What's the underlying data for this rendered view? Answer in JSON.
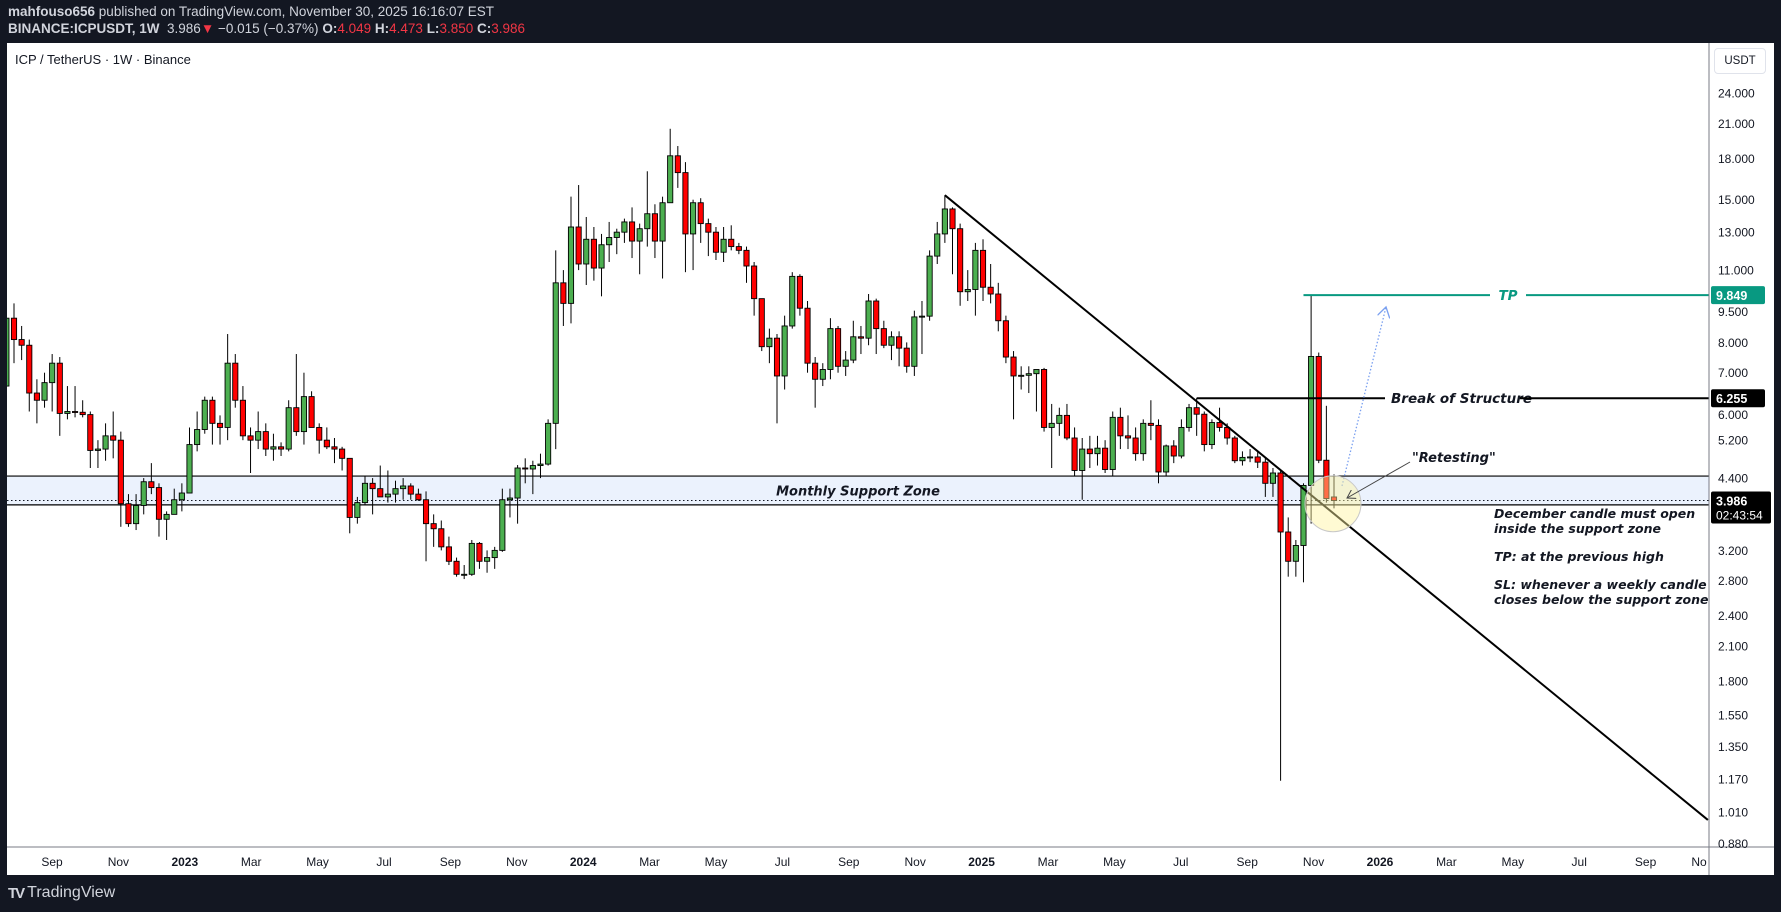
{
  "header": {
    "author": "mahfouso656",
    "published": "published on TradingView.com, November 30, 2025 16:16:07 EST",
    "symbol": "BINANCE:ICPUSDT, 1W",
    "last": "3.986",
    "direction_icon": "triangle-down-icon",
    "change": "−0.015 (−0.37%)",
    "o_label": "O:",
    "o": "4.049",
    "h_label": "H:",
    "h": "4.473",
    "l_label": "L:",
    "l": "3.850",
    "c_label": "C:",
    "c": "3.986"
  },
  "chart_title": "ICP / TetherUS · 1W · Binance",
  "currency_button": "USDT",
  "footer_logo": "TradingView",
  "colors": {
    "up": "#4caf50",
    "down": "#ff0000",
    "tp": "#089981",
    "zone": "#ebf2fd",
    "background": "#131722"
  },
  "chart_data": {
    "type": "candlestick",
    "interval": "1W",
    "yscale": "log",
    "ylim": [
      0.86,
      26
    ],
    "grid": false,
    "y_ticks": [
      "24.000",
      "21.000",
      "18.000",
      "15.000",
      "13.000",
      "11.000",
      "9.500",
      "8.000",
      "7.000",
      "6.000",
      "5.200",
      "4.400",
      "3.200",
      "2.800",
      "2.400",
      "2.100",
      "1.800",
      "1.550",
      "1.350",
      "1.170",
      "1.010",
      "0.880"
    ],
    "x_ticks": [
      "Sep",
      "Nov",
      "2023",
      "Mar",
      "May",
      "Jul",
      "Sep",
      "Nov",
      "2024",
      "Mar",
      "May",
      "Jul",
      "Sep",
      "Nov",
      "2025",
      "Mar",
      "May",
      "Jul",
      "Sep",
      "Nov",
      "2026",
      "Mar",
      "May",
      "Jul",
      "Sep",
      "No"
    ],
    "ohlc_columns": [
      "open",
      "high",
      "low",
      "close"
    ],
    "candles": [
      [
        6.6,
        9.6,
        6.0,
        8.9
      ],
      [
        8.9,
        9.5,
        7.3,
        8.1
      ],
      [
        8.1,
        8.6,
        7.4,
        7.9
      ],
      [
        7.9,
        8.1,
        5.9,
        6.4
      ],
      [
        6.4,
        6.8,
        5.6,
        6.2
      ],
      [
        6.2,
        7.0,
        6.0,
        6.7
      ],
      [
        6.7,
        7.6,
        5.9,
        7.3
      ],
      [
        7.3,
        7.5,
        5.3,
        5.85
      ],
      [
        5.85,
        6.6,
        5.7,
        5.9
      ],
      [
        5.9,
        6.6,
        5.75,
        5.88
      ],
      [
        5.88,
        6.2,
        5.75,
        5.82
      ],
      [
        5.82,
        5.9,
        4.6,
        4.97
      ],
      [
        4.97,
        5.2,
        4.6,
        5.0
      ],
      [
        5.0,
        5.6,
        4.75,
        5.3
      ],
      [
        5.3,
        5.9,
        4.8,
        5.2
      ],
      [
        5.2,
        5.4,
        3.55,
        3.93
      ],
      [
        3.93,
        4.1,
        3.55,
        3.6
      ],
      [
        3.6,
        4.1,
        3.5,
        3.9
      ],
      [
        3.9,
        4.4,
        3.75,
        4.33
      ],
      [
        4.33,
        4.7,
        4.1,
        4.22
      ],
      [
        4.22,
        4.3,
        3.4,
        3.67
      ],
      [
        3.67,
        3.8,
        3.35,
        3.75
      ],
      [
        3.75,
        4.2,
        3.75,
        4.0
      ],
      [
        4.0,
        4.3,
        3.8,
        4.12
      ],
      [
        4.12,
        5.5,
        4.12,
        5.1
      ],
      [
        5.1,
        5.9,
        4.95,
        5.45
      ],
      [
        5.45,
        6.3,
        5.35,
        6.2
      ],
      [
        6.2,
        6.3,
        5.1,
        5.6
      ],
      [
        5.6,
        5.8,
        5.1,
        5.5
      ],
      [
        5.5,
        8.3,
        5.2,
        7.3
      ],
      [
        7.3,
        7.6,
        6.0,
        6.2
      ],
      [
        6.2,
        6.6,
        5.2,
        5.3
      ],
      [
        5.3,
        5.5,
        4.5,
        5.2
      ],
      [
        5.2,
        5.9,
        5.0,
        5.4
      ],
      [
        5.4,
        5.6,
        4.85,
        5.0
      ],
      [
        5.0,
        5.35,
        4.75,
        5.05
      ],
      [
        5.05,
        5.15,
        4.85,
        5.0
      ],
      [
        5.0,
        6.2,
        4.95,
        6.0
      ],
      [
        6.0,
        7.6,
        5.3,
        5.4
      ],
      [
        5.4,
        7.0,
        5.1,
        6.3
      ],
      [
        6.3,
        6.45,
        5.5,
        5.5
      ],
      [
        5.5,
        5.6,
        4.9,
        5.2
      ],
      [
        5.2,
        5.5,
        5.0,
        5.05
      ],
      [
        5.05,
        5.25,
        4.7,
        5.0
      ],
      [
        5.0,
        5.05,
        4.55,
        4.8
      ],
      [
        4.8,
        4.8,
        3.45,
        3.7
      ],
      [
        3.7,
        4.05,
        3.6,
        3.95
      ],
      [
        3.95,
        4.45,
        3.9,
        4.3
      ],
      [
        4.3,
        4.4,
        3.75,
        4.2
      ],
      [
        4.2,
        4.65,
        4.05,
        4.05
      ],
      [
        4.05,
        4.55,
        3.95,
        4.1
      ],
      [
        4.1,
        4.35,
        3.95,
        4.2
      ],
      [
        4.2,
        4.4,
        4.0,
        4.25
      ],
      [
        4.25,
        4.3,
        4.0,
        4.1
      ],
      [
        4.1,
        4.2,
        3.98,
        4.0
      ],
      [
        4.0,
        4.15,
        3.05,
        3.6
      ],
      [
        3.6,
        3.75,
        3.25,
        3.52
      ],
      [
        3.52,
        3.65,
        3.2,
        3.25
      ],
      [
        3.25,
        3.4,
        3.0,
        3.05
      ],
      [
        3.05,
        3.1,
        2.85,
        2.88
      ],
      [
        2.88,
        3.0,
        2.82,
        2.88
      ],
      [
        2.88,
        3.35,
        2.86,
        3.3
      ],
      [
        3.3,
        3.32,
        2.95,
        3.05
      ],
      [
        3.05,
        3.2,
        2.9,
        3.1
      ],
      [
        3.1,
        3.25,
        2.95,
        3.2
      ],
      [
        3.2,
        4.2,
        3.18,
        4.0
      ],
      [
        4.0,
        4.2,
        3.7,
        4.03
      ],
      [
        4.03,
        4.66,
        3.6,
        4.6
      ],
      [
        4.6,
        4.8,
        4.3,
        4.58
      ],
      [
        4.58,
        4.75,
        4.1,
        4.65
      ],
      [
        4.65,
        4.9,
        4.4,
        4.68
      ],
      [
        4.68,
        5.7,
        4.65,
        5.6
      ],
      [
        5.6,
        12.0,
        5.0,
        10.4
      ],
      [
        10.4,
        11.0,
        8.6,
        9.5
      ],
      [
        9.5,
        15.2,
        8.7,
        13.3
      ],
      [
        13.3,
        16.0,
        11.0,
        11.3
      ],
      [
        11.3,
        13.9,
        10.3,
        12.6
      ],
      [
        12.6,
        13.3,
        10.5,
        11.1
      ],
      [
        11.1,
        12.9,
        9.8,
        12.3
      ],
      [
        12.3,
        13.6,
        11.4,
        12.7
      ],
      [
        12.7,
        13.2,
        11.8,
        13.0
      ],
      [
        13.0,
        13.8,
        12.4,
        13.6
      ],
      [
        13.6,
        14.5,
        11.6,
        12.5
      ],
      [
        12.5,
        13.5,
        10.8,
        13.2
      ],
      [
        13.2,
        17.0,
        12.2,
        14.1
      ],
      [
        14.1,
        14.7,
        11.6,
        12.5
      ],
      [
        12.5,
        15.2,
        10.6,
        14.8
      ],
      [
        14.8,
        20.5,
        14.8,
        18.2
      ],
      [
        18.2,
        19.0,
        15.8,
        16.9
      ],
      [
        16.9,
        17.7,
        10.9,
        12.9
      ],
      [
        12.9,
        15.0,
        11.0,
        14.8
      ],
      [
        14.8,
        15.1,
        12.4,
        13.5
      ],
      [
        13.5,
        13.8,
        11.7,
        13.0
      ],
      [
        13.0,
        13.3,
        11.5,
        11.9
      ],
      [
        11.9,
        13.3,
        11.4,
        12.6
      ],
      [
        12.6,
        13.4,
        12.0,
        12.2
      ],
      [
        12.2,
        12.4,
        11.8,
        12.0
      ],
      [
        12.0,
        12.2,
        10.4,
        11.2
      ],
      [
        11.2,
        11.4,
        9.0,
        9.7
      ],
      [
        9.7,
        9.7,
        7.7,
        7.85
      ],
      [
        7.85,
        8.5,
        7.3,
        8.15
      ],
      [
        8.15,
        8.3,
        5.6,
        6.9
      ],
      [
        6.9,
        9.0,
        6.5,
        8.6
      ],
      [
        8.6,
        10.9,
        8.5,
        10.7
      ],
      [
        10.7,
        10.8,
        9.0,
        9.3
      ],
      [
        9.3,
        9.6,
        7.0,
        7.3
      ],
      [
        7.3,
        7.5,
        6.0,
        6.8
      ],
      [
        6.8,
        7.3,
        6.6,
        7.1
      ],
      [
        7.1,
        8.9,
        6.8,
        8.5
      ],
      [
        8.5,
        8.6,
        7.0,
        7.2
      ],
      [
        7.2,
        7.7,
        6.9,
        7.4
      ],
      [
        7.4,
        8.8,
        7.3,
        8.2
      ],
      [
        8.2,
        8.6,
        7.6,
        8.15
      ],
      [
        8.15,
        9.9,
        7.9,
        9.6
      ],
      [
        9.6,
        9.7,
        7.6,
        8.5
      ],
      [
        8.5,
        8.8,
        7.8,
        7.9
      ],
      [
        7.9,
        8.4,
        7.4,
        8.2
      ],
      [
        8.2,
        8.4,
        7.2,
        7.8
      ],
      [
        7.8,
        8.0,
        7.0,
        7.2
      ],
      [
        7.2,
        9.2,
        6.9,
        8.95
      ],
      [
        8.95,
        9.6,
        7.6,
        8.98
      ],
      [
        8.98,
        12.0,
        8.8,
        11.7
      ],
      [
        11.7,
        13.6,
        11.3,
        12.9
      ],
      [
        12.9,
        15.3,
        12.4,
        14.4
      ],
      [
        14.4,
        14.5,
        10.8,
        13.2
      ],
      [
        13.2,
        13.5,
        9.4,
        10.0
      ],
      [
        10.0,
        11.0,
        9.6,
        10.1
      ],
      [
        10.1,
        12.4,
        9.0,
        12.0
      ],
      [
        12.0,
        12.6,
        9.6,
        10.2
      ],
      [
        10.2,
        11.3,
        9.5,
        9.9
      ],
      [
        9.9,
        10.4,
        8.4,
        8.8
      ],
      [
        8.8,
        9.0,
        7.3,
        7.5
      ],
      [
        7.5,
        7.7,
        5.7,
        6.9
      ],
      [
        6.9,
        7.2,
        6.5,
        6.92
      ],
      [
        6.92,
        7.2,
        6.4,
        6.97
      ],
      [
        6.97,
        7.1,
        5.9,
        7.1
      ],
      [
        7.1,
        7.15,
        5.4,
        5.5
      ],
      [
        5.5,
        6.1,
        4.6,
        5.6
      ],
      [
        5.6,
        6.0,
        5.3,
        5.8
      ],
      [
        5.8,
        6.1,
        5.2,
        5.25
      ],
      [
        5.25,
        5.5,
        4.45,
        4.55
      ],
      [
        4.55,
        5.25,
        4.0,
        5.0
      ],
      [
        5.0,
        5.3,
        4.6,
        4.9
      ],
      [
        4.9,
        5.3,
        4.65,
        5.02
      ],
      [
        5.02,
        5.2,
        4.5,
        4.57
      ],
      [
        4.57,
        5.9,
        4.45,
        5.75
      ],
      [
        5.75,
        6.0,
        5.0,
        5.3
      ],
      [
        5.3,
        5.8,
        5.0,
        5.25
      ],
      [
        5.25,
        5.5,
        4.75,
        4.9
      ],
      [
        4.9,
        5.7,
        4.75,
        5.6
      ],
      [
        5.6,
        6.2,
        5.2,
        5.55
      ],
      [
        5.55,
        5.7,
        4.3,
        4.52
      ],
      [
        4.52,
        5.1,
        4.45,
        5.07
      ],
      [
        5.07,
        5.2,
        4.7,
        4.85
      ],
      [
        4.85,
        5.7,
        4.8,
        5.5
      ],
      [
        5.5,
        6.1,
        5.4,
        6.0
      ],
      [
        6.0,
        6.26,
        5.3,
        5.83
      ],
      [
        5.83,
        5.9,
        4.95,
        5.1
      ],
      [
        5.1,
        5.7,
        5.0,
        5.62
      ],
      [
        5.62,
        6.0,
        5.4,
        5.5
      ],
      [
        5.5,
        5.6,
        5.1,
        5.25
      ],
      [
        5.25,
        5.3,
        4.7,
        4.75
      ],
      [
        4.75,
        4.95,
        4.65,
        4.82
      ],
      [
        4.82,
        5.0,
        4.72,
        4.83
      ],
      [
        4.83,
        4.95,
        4.6,
        4.72
      ],
      [
        4.72,
        4.8,
        4.05,
        4.3
      ],
      [
        4.3,
        4.6,
        4.05,
        4.5
      ],
      [
        4.5,
        4.55,
        1.16,
        3.47
      ],
      [
        3.47,
        3.7,
        2.85,
        3.05
      ],
      [
        3.05,
        3.35,
        2.85,
        3.27
      ],
      [
        3.27,
        4.3,
        2.78,
        4.26
      ],
      [
        4.26,
        9.85,
        3.6,
        7.52
      ],
      [
        7.52,
        7.65,
        4.7,
        4.76
      ],
      [
        4.76,
        6.05,
        3.95,
        4.02
      ],
      [
        4.049,
        4.473,
        3.85,
        3.986
      ]
    ],
    "current_price": {
      "value": "3.986",
      "countdown": "02:43:54"
    },
    "annotations": {
      "support_zone": {
        "top": 4.44,
        "bottom": 3.91,
        "label": "Monthly Support Zone"
      },
      "trendline": {
        "from": {
          "bar": 123,
          "price": 15.3
        },
        "to": {
          "bar": 223,
          "price": 0.976
        }
      },
      "break_of_structure": {
        "price": 6.255,
        "price_label": "6.255",
        "label": "Break of Structure",
        "from_bar": 156
      },
      "take_profit": {
        "price": 9.849,
        "price_label": "9.849",
        "label": "TP",
        "from_bar": 170
      },
      "retest_label": "\"Retesting\"",
      "notes": [
        "December candle must open",
        "inside the support zone",
        "TP: at the previous high",
        "SL: whenever a weekly candle",
        "closes below the support zone"
      ]
    }
  }
}
